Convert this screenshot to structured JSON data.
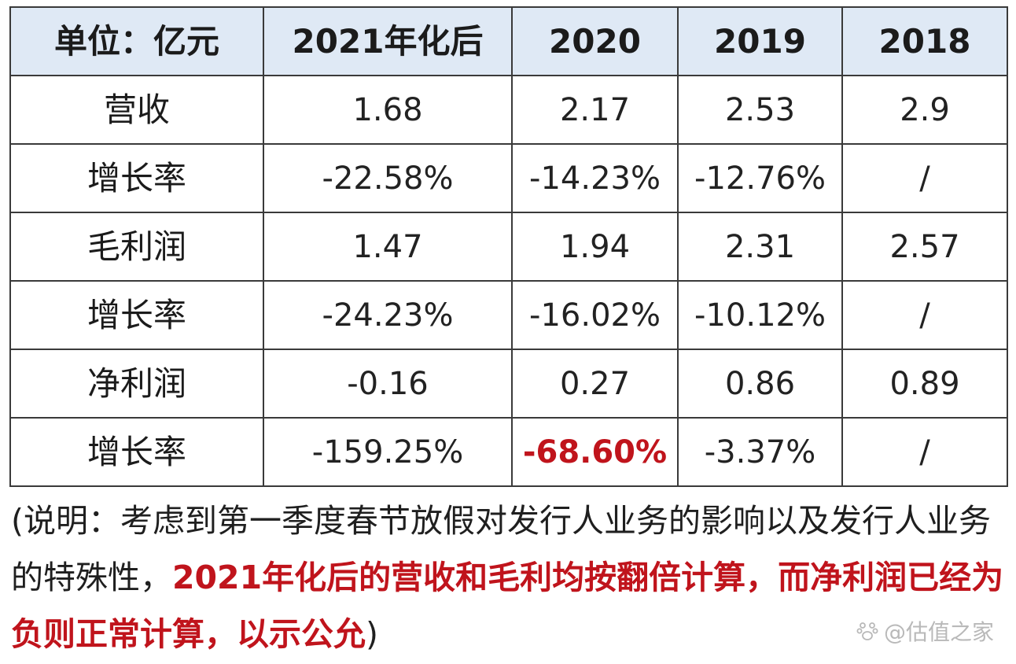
{
  "table": {
    "header": {
      "unit": "单位：亿元",
      "columns": [
        "2021年化后",
        "2020",
        "2019",
        "2018"
      ]
    },
    "rows": [
      {
        "label": "营收",
        "values": [
          "1.68",
          "2.17",
          "2.53",
          "2.9"
        ]
      },
      {
        "label": "增长率",
        "values": [
          "-22.58%",
          "-14.23%",
          "-12.76%",
          "/"
        ]
      },
      {
        "label": "毛利润",
        "values": [
          "1.47",
          "1.94",
          "2.31",
          "2.57"
        ]
      },
      {
        "label": "增长率",
        "values": [
          "-24.23%",
          "-16.02%",
          "-10.12%",
          "/"
        ]
      },
      {
        "label": "净利润",
        "values": [
          "-0.16",
          "0.27",
          "0.86",
          "0.89"
        ]
      },
      {
        "label": "增长率",
        "values": [
          "-159.25%",
          "-68.60%",
          "-3.37%",
          "/"
        ]
      }
    ],
    "highlight_color": "#c0141c"
  },
  "note": {
    "prefix": "(说明：考虑到第一季度春节放假对发行人业务的影响以及发行人业务的特殊性，",
    "emphasis": "2021年化后的营收和毛利均按翻倍计算，而净利润已经为负则正常计算，以示公允",
    "suffix": ")"
  },
  "watermark": {
    "text": "@估值之家",
    "icon": "paw-icon"
  }
}
